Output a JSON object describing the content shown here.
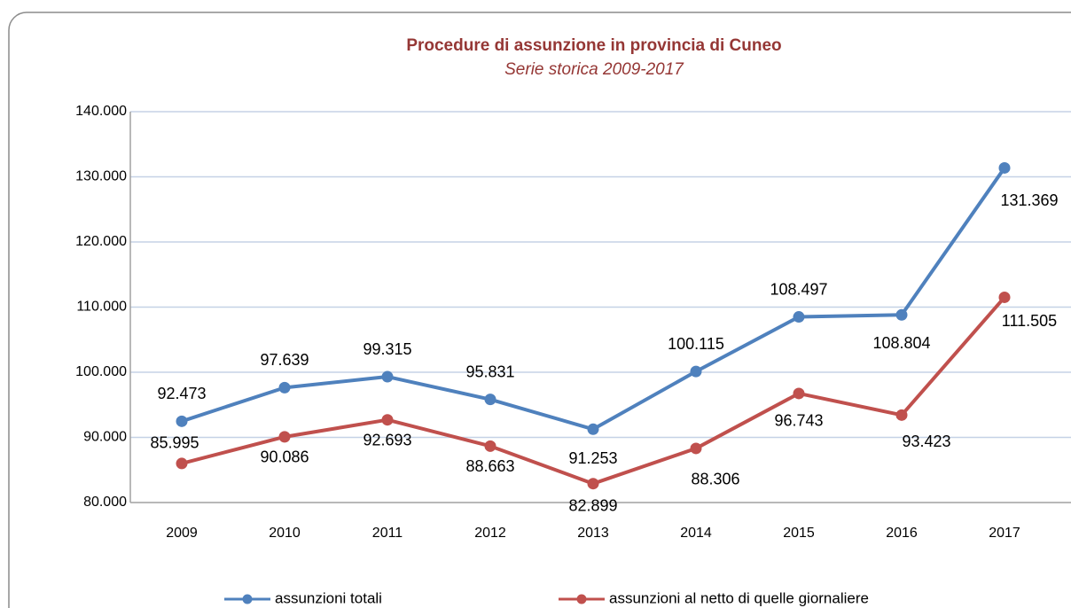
{
  "chart_data": {
    "type": "line",
    "title": "Procedure di assunzione in provincia di Cuneo",
    "subtitle": "Serie storica 2009-2017",
    "categories": [
      "2009",
      "2010",
      "2011",
      "2012",
      "2013",
      "2014",
      "2015",
      "2016",
      "2017"
    ],
    "series": [
      {
        "name": "assunzioni totali",
        "color": "#4f81bd",
        "values": [
          92473,
          97639,
          99315,
          95831,
          91253,
          100115,
          108497,
          108804,
          131369
        ],
        "value_labels": [
          "92.473",
          "97.639",
          "99.315",
          "95.831",
          "91.253",
          "100.115",
          "108.497",
          "108.804",
          "131.369"
        ]
      },
      {
        "name": "assunzioni al netto di quelle giornaliere",
        "color": "#c0504d",
        "values": [
          85995,
          90086,
          92693,
          88663,
          82899,
          88306,
          96743,
          93423,
          111505
        ],
        "value_labels": [
          "85.995",
          "90.086",
          "92.693",
          "88.663",
          "82.899",
          "88.306",
          "96.743",
          "93.423",
          "111.505"
        ]
      }
    ],
    "ylim": [
      80000,
      140000
    ],
    "yticks": [
      {
        "value": 80000,
        "label": "80.000"
      },
      {
        "value": 90000,
        "label": "90.000"
      },
      {
        "value": 100000,
        "label": "100.000"
      },
      {
        "value": 110000,
        "label": "110.000"
      },
      {
        "value": 120000,
        "label": "120.000"
      },
      {
        "value": 130000,
        "label": "130.000"
      },
      {
        "value": 140000,
        "label": "140.000"
      }
    ],
    "grid": true,
    "legend": "bottom"
  }
}
